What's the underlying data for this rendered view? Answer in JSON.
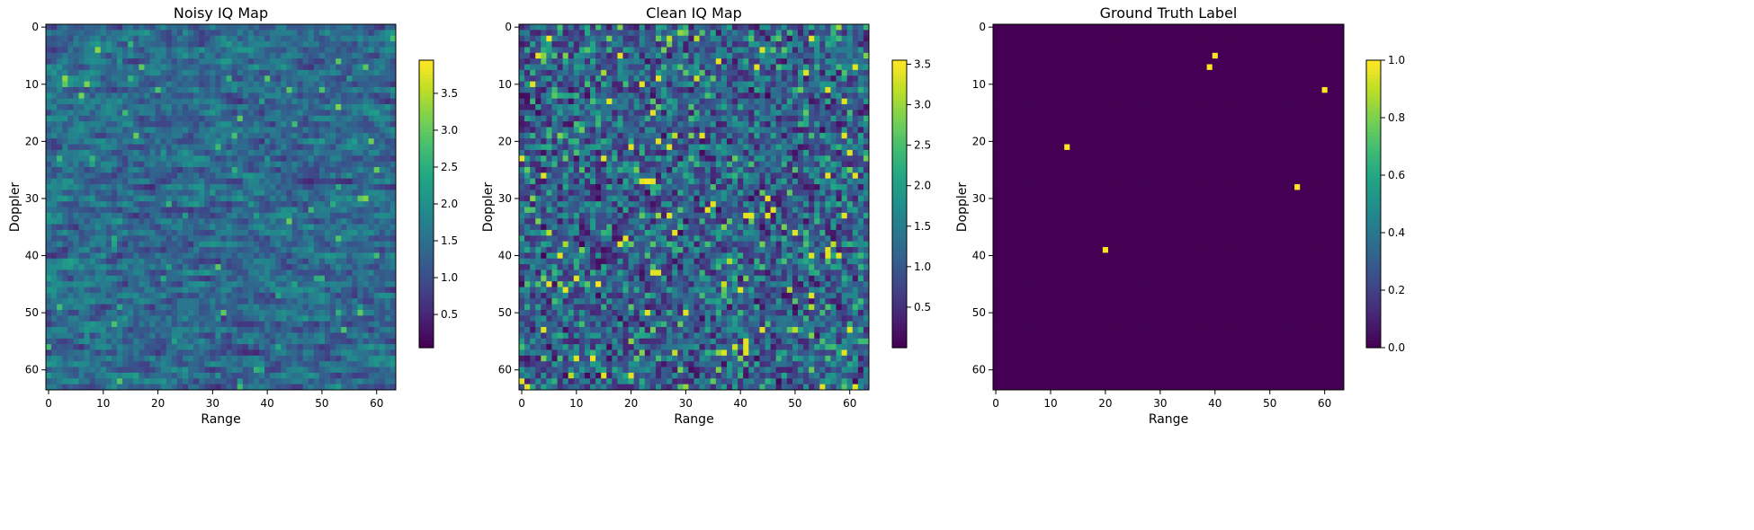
{
  "chart_data": [
    {
      "type": "heatmap",
      "title": "Noisy IQ Map",
      "xlabel": "Range",
      "ylabel": "Doppler",
      "rows": 64,
      "cols": 64,
      "xlim": [
        -0.5,
        63.5
      ],
      "ylim": [
        63.5,
        -0.5
      ],
      "xticks": [
        0,
        10,
        20,
        30,
        40,
        50,
        60
      ],
      "yticks": [
        0,
        10,
        20,
        30,
        40,
        50,
        60
      ],
      "colormap": "viridis",
      "color_range": [
        0.05,
        3.95
      ],
      "colorbar_ticks": [
        0.5,
        1.0,
        1.5,
        2.0,
        2.5,
        3.0,
        3.5
      ],
      "colorbar_tick_labels": [
        "0.5",
        "1.0",
        "1.5",
        "2.0",
        "2.5",
        "3.0",
        "3.5"
      ],
      "pattern": "noisy",
      "seed": 11
    },
    {
      "type": "heatmap",
      "title": "Clean IQ Map",
      "xlabel": "Range",
      "ylabel": "Doppler",
      "rows": 64,
      "cols": 64,
      "xlim": [
        -0.5,
        63.5
      ],
      "ylim": [
        63.5,
        -0.5
      ],
      "xticks": [
        0,
        10,
        20,
        30,
        40,
        50,
        60
      ],
      "yticks": [
        0,
        10,
        20,
        30,
        40,
        50,
        60
      ],
      "colormap": "viridis",
      "color_range": [
        0.0,
        3.55
      ],
      "colorbar_ticks": [
        0.5,
        1.0,
        1.5,
        2.0,
        2.5,
        3.0,
        3.5
      ],
      "colorbar_tick_labels": [
        "0.5",
        "1.0",
        "1.5",
        "2.0",
        "2.5",
        "3.0",
        "3.5"
      ],
      "pattern": "clean",
      "seed": 29
    },
    {
      "type": "heatmap",
      "title": "Ground Truth Label",
      "xlabel": "Range",
      "ylabel": "Doppler",
      "rows": 64,
      "cols": 64,
      "xlim": [
        -0.5,
        63.5
      ],
      "ylim": [
        63.5,
        -0.5
      ],
      "xticks": [
        0,
        10,
        20,
        30,
        40,
        50,
        60
      ],
      "yticks": [
        0,
        10,
        20,
        30,
        40,
        50,
        60
      ],
      "colormap": "viridis",
      "color_range": [
        0.0,
        1.0
      ],
      "colorbar_ticks": [
        0.0,
        0.2,
        0.4,
        0.6,
        0.8,
        1.0
      ],
      "colorbar_tick_labels": [
        "0.0",
        "0.2",
        "0.4",
        "0.6",
        "0.8",
        "1.0"
      ],
      "pattern": "binary",
      "background_value": 0.0,
      "targets": [
        {
          "range": 40,
          "doppler": 5,
          "value": 1.0
        },
        {
          "range": 39,
          "doppler": 7,
          "value": 1.0
        },
        {
          "range": 60,
          "doppler": 11,
          "value": 1.0
        },
        {
          "range": 13,
          "doppler": 21,
          "value": 1.0
        },
        {
          "range": 55,
          "doppler": 28,
          "value": 1.0
        },
        {
          "range": 20,
          "doppler": 39,
          "value": 1.0
        }
      ]
    }
  ]
}
